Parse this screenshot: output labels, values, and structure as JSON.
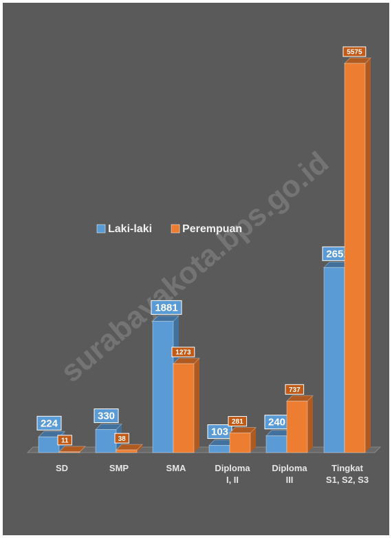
{
  "chart_data": {
    "type": "bar3d",
    "watermark": "surabayakota.bps.go.id",
    "categories": [
      "SD",
      "SMP",
      "SMA",
      "Diploma\nI, II",
      "Diploma\nIII",
      "Tingkat\nS1, S2, S3"
    ],
    "series": [
      {
        "name": "Laki-laki",
        "color": "#5b9bd5",
        "values": [
          224,
          330,
          1881,
          103,
          240,
          2651
        ]
      },
      {
        "name": "Perempuan",
        "color": "#ed7d31",
        "values": [
          11,
          38,
          1273,
          281,
          737,
          5575
        ]
      }
    ],
    "ylim": [
      0,
      5575
    ]
  }
}
